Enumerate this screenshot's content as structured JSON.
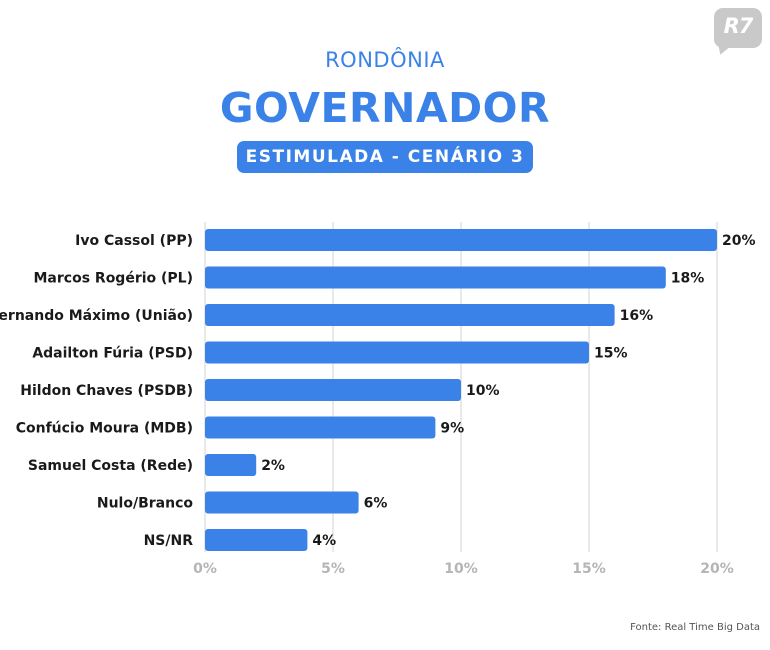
{
  "logo": {
    "text": "R7"
  },
  "header": {
    "state": "RONDÔNIA",
    "office": "GOVERNADOR",
    "scenario": "ESTIMULADA - CENÁRIO 3"
  },
  "source": "Fonte: Real Time Big Data",
  "colors": {
    "accent": "#3b82e8",
    "bar": "#3b82e8",
    "grid": "#e2e2e2",
    "tick_text": "#b5b5b5"
  },
  "chart_data": {
    "type": "bar",
    "orientation": "horizontal",
    "categories": [
      "Ivo Cassol (PP)",
      "Marcos Rogério (PL)",
      "Fernando Máximo (União)",
      "Adailton Fúria (PSD)",
      "Hildon Chaves (PSDB)",
      "Confúcio Moura (MDB)",
      "Samuel Costa (Rede)",
      "Nulo/Branco",
      "NS/NR"
    ],
    "values": [
      20,
      18,
      16,
      15,
      10,
      9,
      2,
      6,
      4
    ],
    "value_labels": [
      "20%",
      "18%",
      "16%",
      "15%",
      "10%",
      "9%",
      "2%",
      "6%",
      "4%"
    ],
    "xlim": [
      0,
      20
    ],
    "xticks": [
      0,
      5,
      10,
      15,
      20
    ],
    "xtick_labels": [
      "0%",
      "5%",
      "10%",
      "15%",
      "20%"
    ],
    "grid": true,
    "legend": false
  }
}
